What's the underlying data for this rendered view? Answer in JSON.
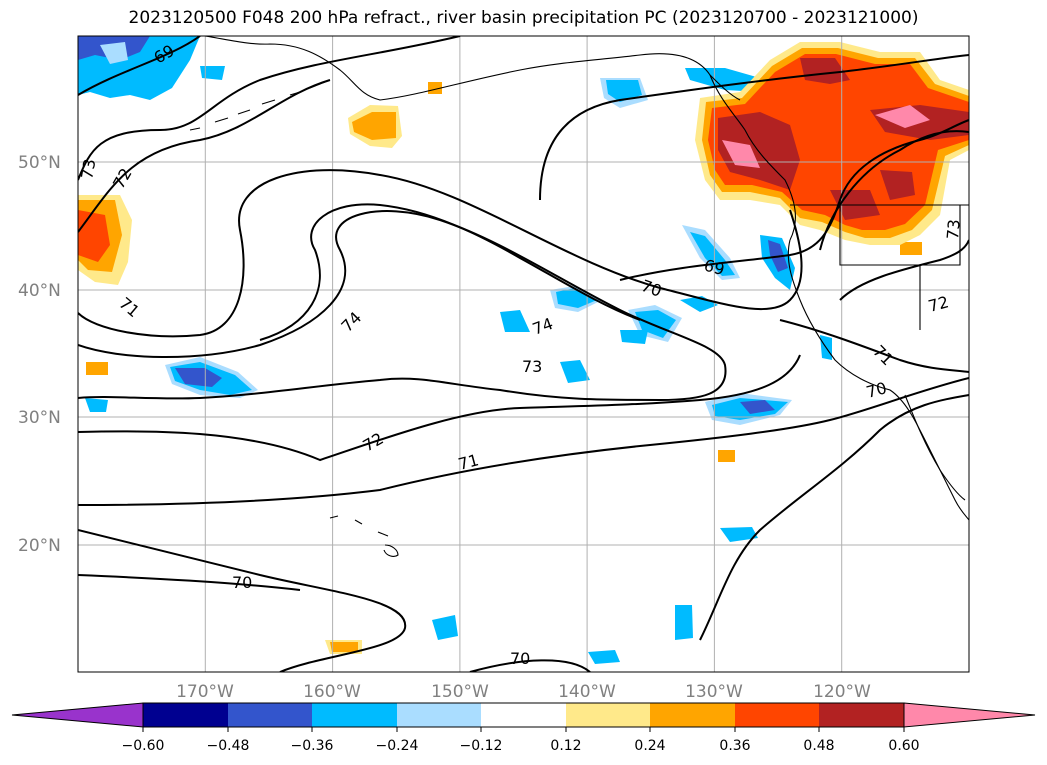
{
  "title": "2023120500 F048 200 hPa refract., river basin precipitation PC (2023120700 - 2023121000)",
  "lat_labels": [
    "50°N",
    "40°N",
    "30°N",
    "20°N"
  ],
  "lon_labels": [
    "170°W",
    "160°W",
    "150°W",
    "140°W",
    "130°W",
    "120°W"
  ],
  "colorbar": {
    "ticks": [
      "−0.60",
      "−0.48",
      "−0.36",
      "−0.24",
      "−0.12",
      "0.12",
      "0.24",
      "0.36",
      "0.48",
      "0.60"
    ],
    "colors": [
      "#9933cc",
      "#000090",
      "#3355cc",
      "#00bbff",
      "#aaddff",
      "#ffffff",
      "#ffe98a",
      "#ffa500",
      "#ff4500",
      "#b22222",
      "#ff88aa"
    ]
  },
  "contour_labels": [
    "69",
    "73",
    "72",
    "71",
    "74",
    "74",
    "73",
    "72",
    "71",
    "70",
    "70",
    "70",
    "69",
    "71",
    "70",
    "72",
    "73"
  ]
}
